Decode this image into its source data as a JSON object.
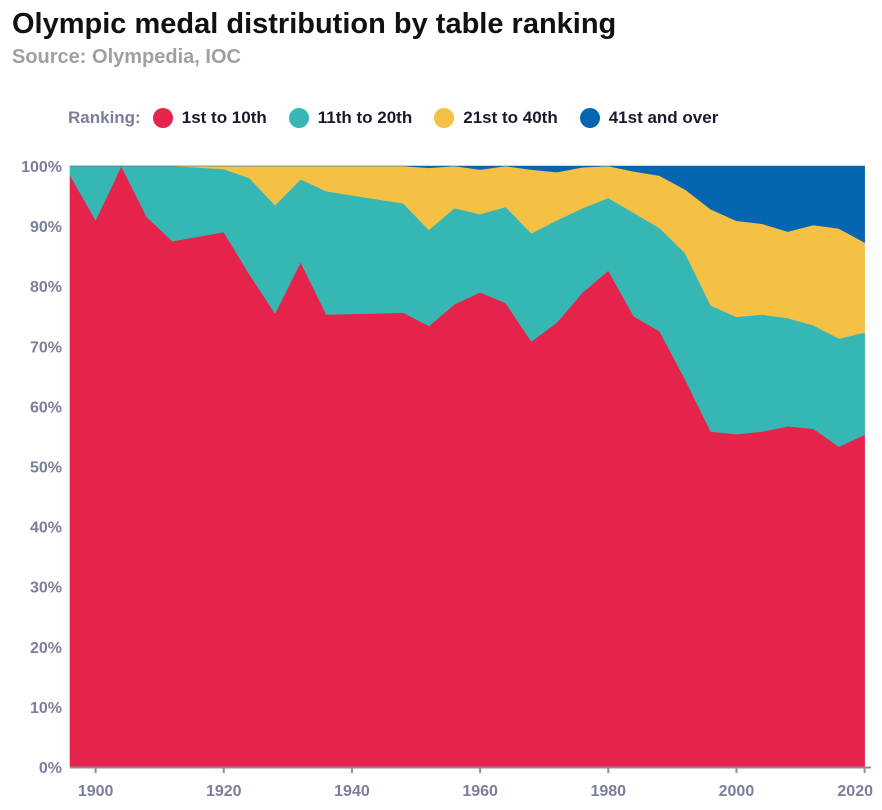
{
  "title": "Olympic medal distribution by table ranking",
  "subtitle": "Source: Olympedia, IOC",
  "legend": {
    "title": "Ranking:",
    "items": [
      {
        "label": "1st to 10th",
        "color": "#e6234a"
      },
      {
        "label": "11th to 20th",
        "color": "#37b7b4"
      },
      {
        "label": "21st to 40th",
        "color": "#f4c145"
      },
      {
        "label": "41st and over",
        "color": "#0465b0"
      }
    ]
  },
  "chart_data": {
    "type": "area",
    "stacked": true,
    "title": "Olympic medal distribution by table ranking",
    "subtitle": "Source: Olympedia, IOC",
    "x": [
      1896,
      1900,
      1904,
      1908,
      1912,
      1920,
      1924,
      1928,
      1932,
      1936,
      1948,
      1952,
      1956,
      1960,
      1964,
      1968,
      1972,
      1976,
      1980,
      1984,
      1988,
      1992,
      1996,
      2000,
      2004,
      2008,
      2012,
      2016,
      2020
    ],
    "xlim": [
      1896,
      2021
    ],
    "ylim": [
      0,
      100
    ],
    "x_ticks": [
      "1900",
      "1920",
      "1940",
      "1960",
      "1980",
      "2000",
      "2020"
    ],
    "y_ticks": [
      "0%",
      "10%",
      "20%",
      "30%",
      "40%",
      "50%",
      "60%",
      "70%",
      "80%",
      "90%",
      "100%"
    ],
    "grid": true,
    "legend_position": "top",
    "series": [
      {
        "name": "1st to 10th",
        "color": "#e6234a",
        "values": [
          98.5,
          91,
          100,
          91.5,
          87.5,
          89,
          82,
          75.5,
          84,
          75.3,
          75.6,
          73.4,
          77,
          79,
          77.2,
          70.8,
          74,
          79,
          82.6,
          75,
          72.5,
          64.5,
          55.8,
          55.4,
          55.8,
          56.7,
          56.3,
          53.3,
          55.3
        ]
      },
      {
        "name": "11th to 20th",
        "color": "#37b7b4",
        "values": [
          1.5,
          9,
          0,
          8.5,
          12.5,
          10.5,
          16,
          18,
          13.8,
          20.5,
          18.2,
          16,
          16,
          13,
          16,
          18,
          17,
          14,
          12.1,
          17.2,
          17.2,
          21,
          21,
          19.5,
          19.5,
          18,
          17.2,
          18,
          17
        ]
      },
      {
        "name": "21st to 40th",
        "color": "#f4c145",
        "values": [
          0,
          0,
          0,
          0,
          0,
          0.5,
          2,
          6.5,
          2.2,
          4.2,
          6.2,
          10.3,
          7,
          7.4,
          6.9,
          10.6,
          8,
          6.8,
          5.3,
          6.9,
          8.7,
          10.6,
          16,
          16,
          15.1,
          14.4,
          16.7,
          18.3,
          15
        ]
      },
      {
        "name": "41st and over",
        "color": "#0465b0",
        "values": [
          0,
          0,
          0,
          0,
          0,
          0,
          0,
          0,
          0,
          0,
          0,
          0.3,
          0,
          0.6,
          0,
          0.6,
          1,
          0.2,
          0,
          0.9,
          1.6,
          3.9,
          7.2,
          9.1,
          9.6,
          10.9,
          9.8,
          10.4,
          12.7
        ]
      }
    ]
  }
}
